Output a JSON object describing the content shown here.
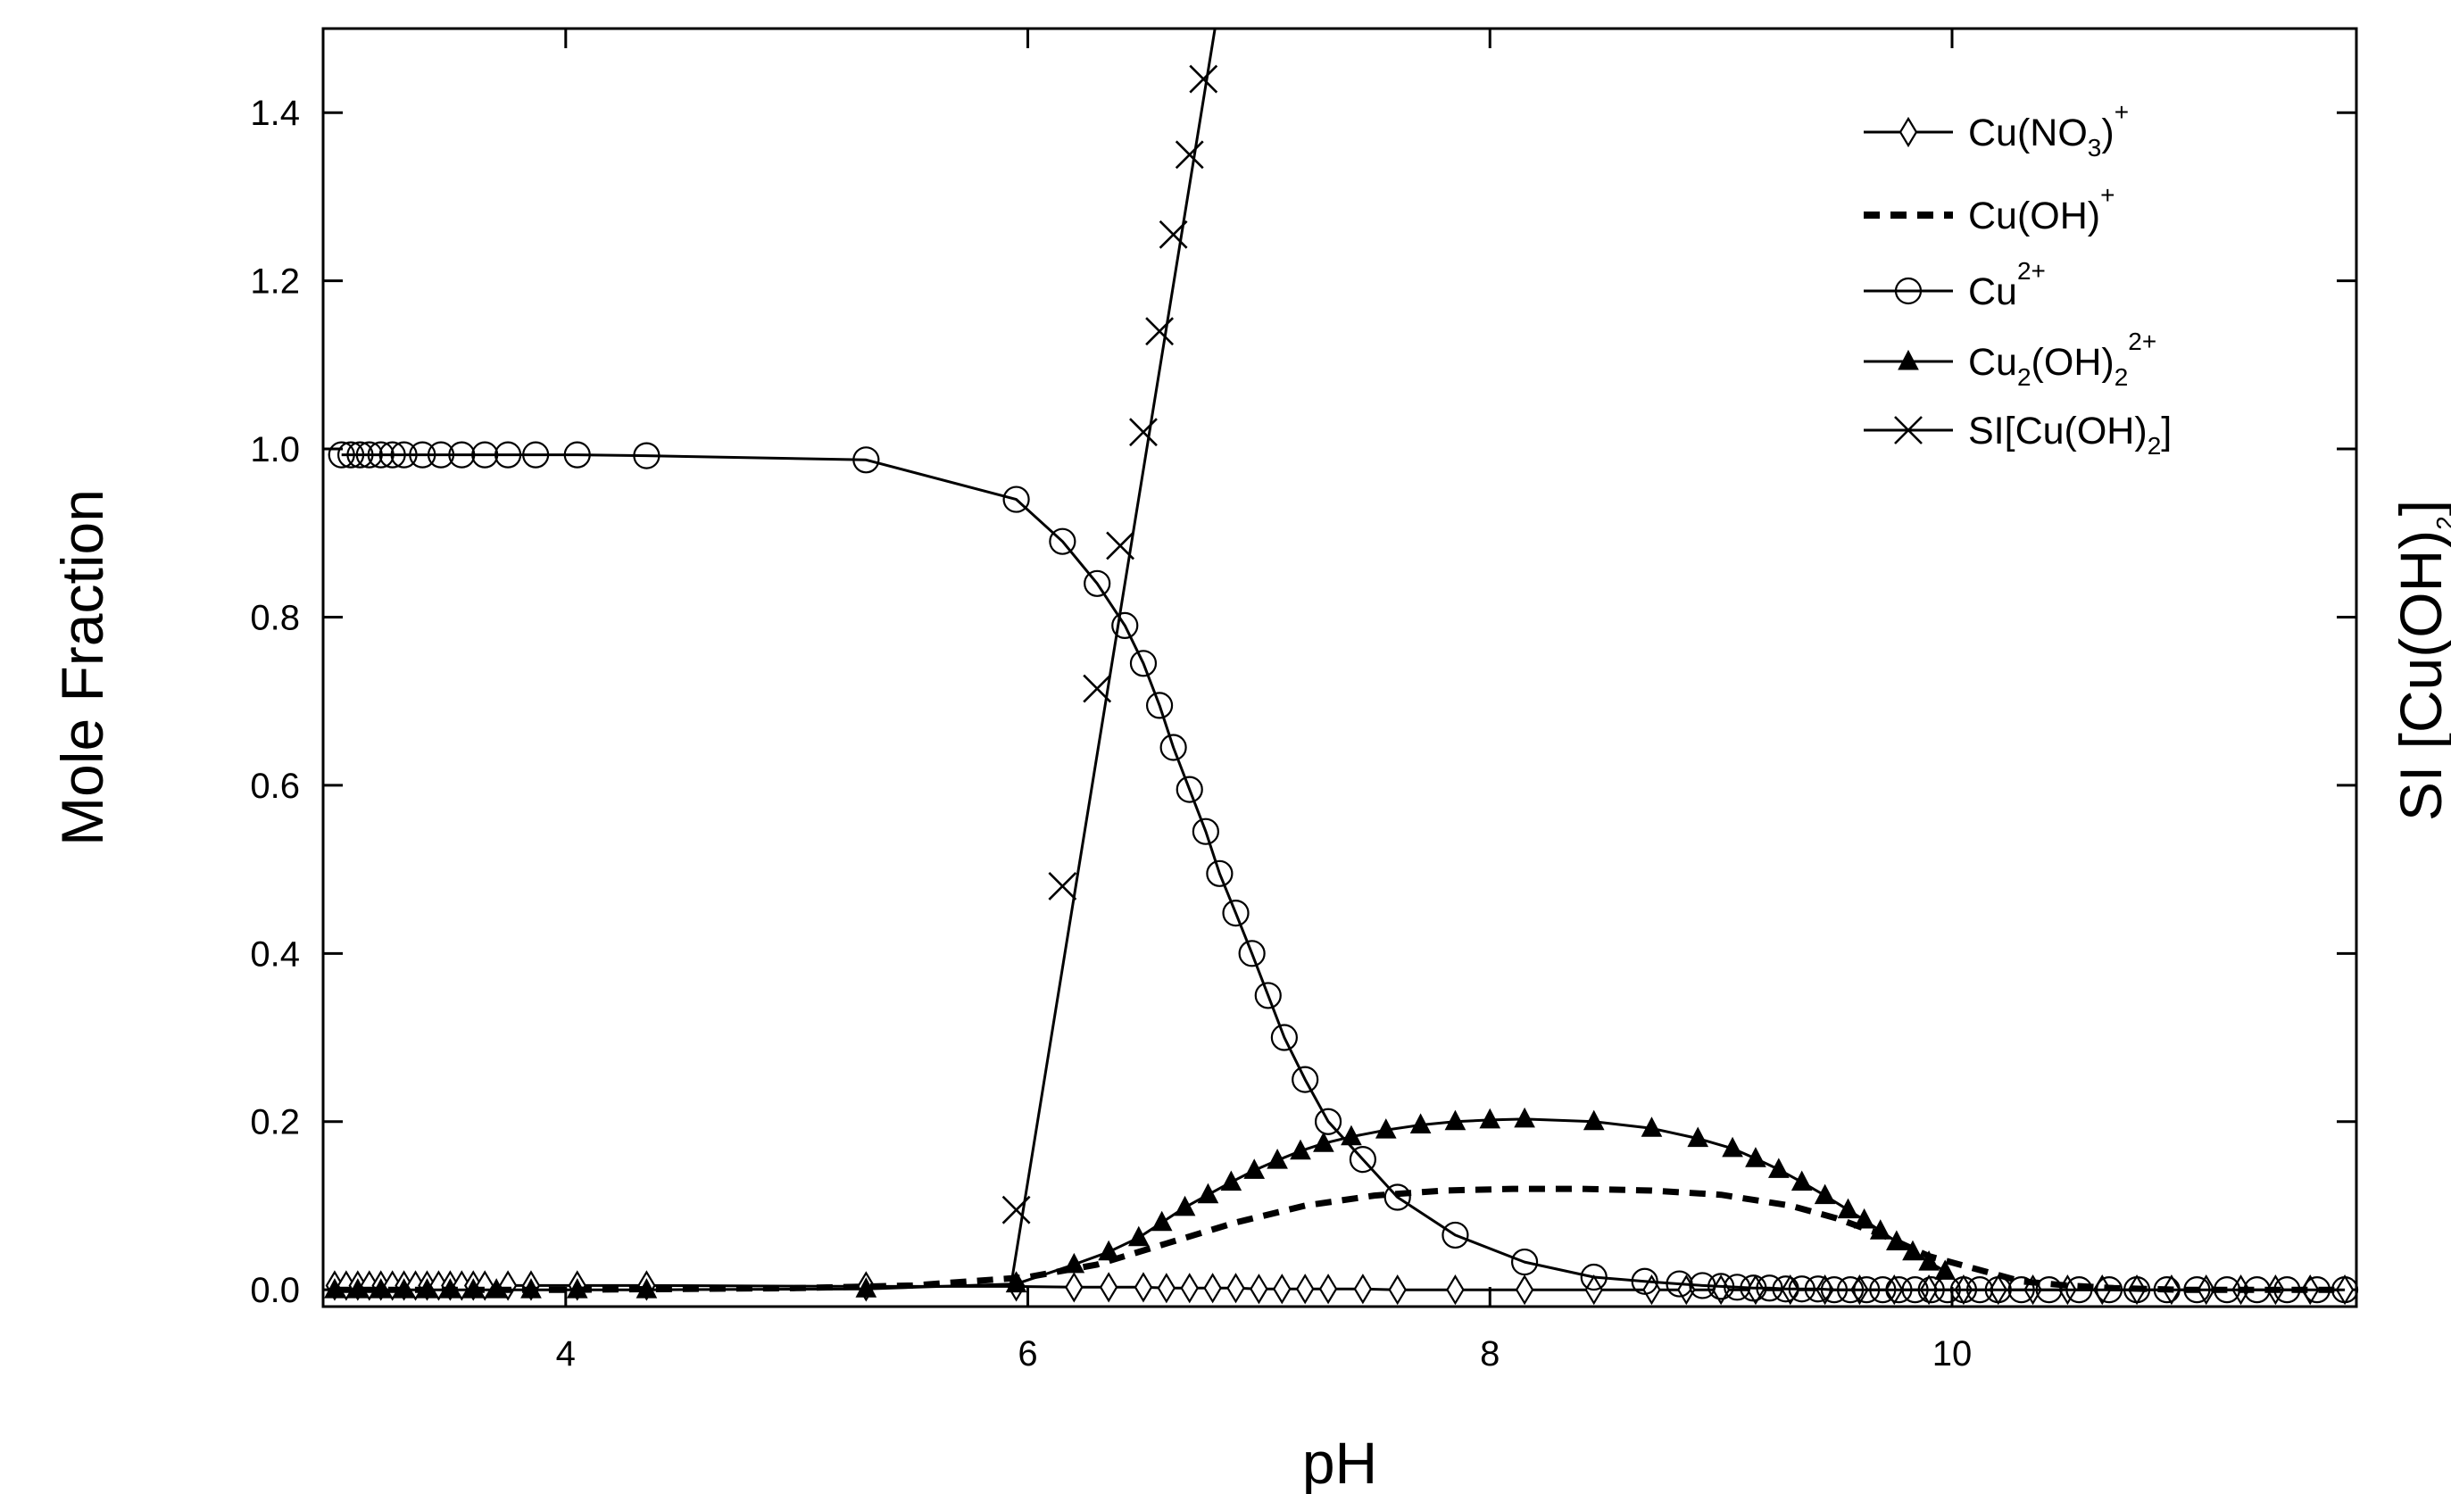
{
  "chart_data": {
    "type": "line",
    "xlabel": "pH",
    "ylabel": "Mole Fraction",
    "ylabel_right": {
      "main": "SI [Cu(OH)",
      "sub": "2",
      "end": "]"
    },
    "xlim": [
      2.95,
      11.75
    ],
    "ylim": [
      -0.02,
      1.5
    ],
    "xticks": [
      4,
      6,
      8,
      10
    ],
    "yticks": [
      0.0,
      0.2,
      0.4,
      0.6,
      0.8,
      1.0,
      1.2,
      1.4
    ],
    "legend_position": "top-right",
    "series": [
      {
        "name": {
          "main": "Cu(NO",
          "sub": "3",
          "end": ")",
          "sup": "+"
        },
        "marker": "diamond",
        "line": "solid",
        "x": [
          3.0,
          3.05,
          3.1,
          3.15,
          3.2,
          3.25,
          3.3,
          3.35,
          3.4,
          3.45,
          3.5,
          3.55,
          3.6,
          3.65,
          3.75,
          3.85,
          4.05,
          4.35,
          5.3,
          5.95,
          6.2,
          6.35,
          6.5,
          6.6,
          6.7,
          6.8,
          6.9,
          7.0,
          7.1,
          7.2,
          7.3,
          7.45,
          7.6,
          7.85,
          8.15,
          8.45,
          8.7,
          8.85,
          9.0,
          9.15,
          9.3,
          9.45,
          9.6,
          9.75,
          9.9,
          10.05,
          10.2,
          10.35,
          10.5,
          10.65,
          10.8,
          10.95,
          11.1,
          11.25,
          11.4,
          11.55,
          11.7
        ],
        "y": [
          0.005,
          0.005,
          0.005,
          0.005,
          0.005,
          0.005,
          0.005,
          0.005,
          0.005,
          0.005,
          0.005,
          0.005,
          0.005,
          0.005,
          0.005,
          0.005,
          0.005,
          0.005,
          0.004,
          0.004,
          0.003,
          0.003,
          0.003,
          0.002,
          0.002,
          0.002,
          0.002,
          0.001,
          0.001,
          0.001,
          0.001,
          0.001,
          0.0,
          0.0,
          0.0,
          0.0,
          0.0,
          0.0,
          0.0,
          0.0,
          0.0,
          0.0,
          0.0,
          0.0,
          0.0,
          0.0,
          0.0,
          0.0,
          0.0,
          0.0,
          0.0,
          0.0,
          0.0,
          0.0,
          0.0,
          0.0,
          0.0
        ]
      },
      {
        "name": {
          "main": "Cu(OH)",
          "sup": "+"
        },
        "marker": "none",
        "line": "dashed",
        "x": [
          3.0,
          4.0,
          5.0,
          5.5,
          6.0,
          6.3,
          6.6,
          6.9,
          7.2,
          7.5,
          7.8,
          8.1,
          8.4,
          8.7,
          9.0,
          9.3,
          9.5,
          9.7,
          9.9,
          10.1,
          10.3,
          10.5,
          10.7,
          11.0,
          11.7
        ],
        "y": [
          0.0,
          0.0,
          0.002,
          0.005,
          0.015,
          0.03,
          0.055,
          0.08,
          0.1,
          0.112,
          0.118,
          0.12,
          0.12,
          0.118,
          0.113,
          0.1,
          0.085,
          0.065,
          0.04,
          0.025,
          0.01,
          0.005,
          0.002,
          0.0,
          0.0
        ]
      },
      {
        "name": {
          "main": "Cu",
          "sup": "2+"
        },
        "marker": "circle",
        "line": "solid",
        "x": [
          3.03,
          3.07,
          3.11,
          3.15,
          3.2,
          3.25,
          3.3,
          3.38,
          3.46,
          3.55,
          3.65,
          3.75,
          3.87,
          4.05,
          4.35,
          5.3,
          5.95,
          6.15,
          6.3,
          6.42,
          6.5,
          6.57,
          6.63,
          6.7,
          6.77,
          6.83,
          6.9,
          6.97,
          7.04,
          7.11,
          7.2,
          7.3,
          7.45,
          7.6,
          7.85,
          8.15,
          8.45,
          8.67,
          8.82,
          8.92,
          9.0,
          9.07,
          9.14,
          9.21,
          9.28,
          9.35,
          9.42,
          9.49,
          9.56,
          9.63,
          9.7,
          9.77,
          9.84,
          9.91,
          9.98,
          10.05,
          10.12,
          10.2,
          10.3,
          10.42,
          10.55,
          10.68,
          10.8,
          10.93,
          11.06,
          11.19,
          11.32,
          11.45,
          11.58,
          11.7
        ],
        "y": [
          0.993,
          0.993,
          0.993,
          0.993,
          0.993,
          0.993,
          0.993,
          0.993,
          0.993,
          0.993,
          0.993,
          0.993,
          0.993,
          0.993,
          0.992,
          0.987,
          0.94,
          0.89,
          0.84,
          0.79,
          0.745,
          0.695,
          0.645,
          0.595,
          0.545,
          0.495,
          0.448,
          0.4,
          0.35,
          0.3,
          0.25,
          0.2,
          0.155,
          0.11,
          0.065,
          0.033,
          0.015,
          0.01,
          0.007,
          0.005,
          0.004,
          0.003,
          0.002,
          0.002,
          0.001,
          0.001,
          0.001,
          0.0,
          0.0,
          0.0,
          0.0,
          0.0,
          0.0,
          0.0,
          0.0,
          0.0,
          0.0,
          0.0,
          0.0,
          0.0,
          0.0,
          0.0,
          0.0,
          0.0,
          0.0,
          0.0,
          0.0,
          0.0,
          0.0,
          0.0
        ]
      },
      {
        "name": {
          "main": "Cu",
          "sub": "2",
          "mid": "(OH)",
          "sub2": "2",
          "sup": "2+"
        },
        "marker": "triangle",
        "line": "solid",
        "x": [
          3.0,
          3.1,
          3.2,
          3.3,
          3.4,
          3.5,
          3.6,
          3.7,
          3.85,
          4.05,
          4.35,
          5.3,
          5.95,
          6.2,
          6.35,
          6.48,
          6.58,
          6.68,
          6.78,
          6.88,
          6.98,
          7.08,
          7.18,
          7.28,
          7.4,
          7.55,
          7.7,
          7.85,
          8.0,
          8.15,
          8.45,
          8.7,
          8.9,
          9.05,
          9.15,
          9.25,
          9.35,
          9.45,
          9.55,
          9.62,
          9.69,
          9.76,
          9.83,
          9.9,
          9.97
        ],
        "y": [
          0.0,
          0.0,
          0.0,
          0.0,
          0.0,
          0.0,
          0.0,
          0.0,
          0.0,
          0.0,
          0.0,
          0.001,
          0.007,
          0.03,
          0.045,
          0.062,
          0.08,
          0.098,
          0.113,
          0.128,
          0.142,
          0.154,
          0.165,
          0.174,
          0.182,
          0.19,
          0.196,
          0.2,
          0.202,
          0.203,
          0.2,
          0.192,
          0.18,
          0.168,
          0.156,
          0.143,
          0.128,
          0.112,
          0.095,
          0.083,
          0.07,
          0.057,
          0.045,
          0.033,
          0.022
        ]
      },
      {
        "name": {
          "main": "SI[Cu(OH)",
          "sub": "2",
          "end": "]"
        },
        "marker": "x",
        "line": "solid",
        "x": [
          5.95,
          6.15,
          6.3,
          6.4,
          6.5,
          6.57,
          6.63,
          6.7,
          6.76
        ],
        "y": [
          0.095,
          0.48,
          0.715,
          0.885,
          1.02,
          1.14,
          1.255,
          1.35,
          1.44
        ],
        "line_x": [
          5.93,
          6.81
        ],
        "line_y": [
          0.01,
          1.5
        ]
      }
    ]
  }
}
